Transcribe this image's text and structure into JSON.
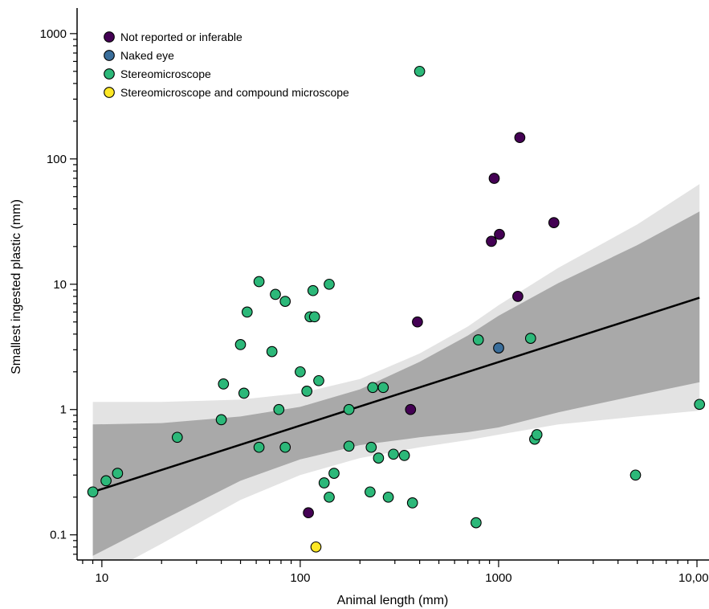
{
  "chart_data": {
    "type": "scatter",
    "xlabel": "Animal length (mm)",
    "ylabel": "Smallest ingested plastic (mm)",
    "x_scale": "log",
    "y_scale": "log",
    "xlim": [
      7.5,
      11500
    ],
    "ylim": [
      0.063,
      1600
    ],
    "x_ticks": [
      {
        "value": 10,
        "label": "10"
      },
      {
        "value": 100,
        "label": "100"
      },
      {
        "value": 1000,
        "label": "1000"
      },
      {
        "value": 10000,
        "label": "10,000"
      }
    ],
    "y_ticks": [
      {
        "value": 0.1,
        "label": "0.1"
      },
      {
        "value": 1,
        "label": "1"
      },
      {
        "value": 10,
        "label": "10"
      },
      {
        "value": 100,
        "label": "100"
      },
      {
        "value": 1000,
        "label": "1000"
      }
    ],
    "grid": false,
    "legend_position": "top-left",
    "series": [
      {
        "name": "Not reported or inferable",
        "color": "#440154",
        "points": [
          {
            "x": 110,
            "y": 0.15
          },
          {
            "x": 360,
            "y": 1
          },
          {
            "x": 390,
            "y": 5
          },
          {
            "x": 920,
            "y": 22
          },
          {
            "x": 950,
            "y": 70
          },
          {
            "x": 1010,
            "y": 25
          },
          {
            "x": 1250,
            "y": 8
          },
          {
            "x": 1280,
            "y": 148
          },
          {
            "x": 1900,
            "y": 31
          }
        ]
      },
      {
        "name": "Naked eye",
        "color": "#3a6e9b",
        "points": [
          {
            "x": 1000,
            "y": 3.1
          }
        ]
      },
      {
        "name": "Stereomicroscope",
        "color": "#2cb879",
        "points": [
          {
            "x": 9,
            "y": 0.22
          },
          {
            "x": 10.5,
            "y": 0.27
          },
          {
            "x": 12,
            "y": 0.31
          },
          {
            "x": 24,
            "y": 0.6
          },
          {
            "x": 40,
            "y": 0.83
          },
          {
            "x": 41,
            "y": 1.6
          },
          {
            "x": 50,
            "y": 3.3
          },
          {
            "x": 52,
            "y": 1.35
          },
          {
            "x": 54,
            "y": 6
          },
          {
            "x": 62,
            "y": 10.5
          },
          {
            "x": 62,
            "y": 0.5
          },
          {
            "x": 72,
            "y": 2.9
          },
          {
            "x": 75,
            "y": 8.3
          },
          {
            "x": 78,
            "y": 1
          },
          {
            "x": 84,
            "y": 7.3
          },
          {
            "x": 84,
            "y": 0.5
          },
          {
            "x": 100,
            "y": 2
          },
          {
            "x": 108,
            "y": 1.4
          },
          {
            "x": 112,
            "y": 5.5
          },
          {
            "x": 116,
            "y": 8.9
          },
          {
            "x": 118,
            "y": 5.5
          },
          {
            "x": 124,
            "y": 1.7
          },
          {
            "x": 132,
            "y": 0.26
          },
          {
            "x": 140,
            "y": 0.2
          },
          {
            "x": 140,
            "y": 10
          },
          {
            "x": 148,
            "y": 0.31
          },
          {
            "x": 176,
            "y": 1
          },
          {
            "x": 176,
            "y": 0.51
          },
          {
            "x": 225,
            "y": 0.22
          },
          {
            "x": 228,
            "y": 0.5
          },
          {
            "x": 232,
            "y": 1.5
          },
          {
            "x": 248,
            "y": 0.41
          },
          {
            "x": 262,
            "y": 1.5
          },
          {
            "x": 278,
            "y": 0.2
          },
          {
            "x": 295,
            "y": 0.44
          },
          {
            "x": 335,
            "y": 0.43
          },
          {
            "x": 368,
            "y": 0.18
          },
          {
            "x": 400,
            "y": 500
          },
          {
            "x": 770,
            "y": 0.125
          },
          {
            "x": 790,
            "y": 3.6
          },
          {
            "x": 1450,
            "y": 3.7
          },
          {
            "x": 1520,
            "y": 0.58
          },
          {
            "x": 1560,
            "y": 0.63
          },
          {
            "x": 4900,
            "y": 0.3
          },
          {
            "x": 10300,
            "y": 1.1
          }
        ]
      },
      {
        "name": "Stereomicroscope and compound microscope",
        "color": "#fde725",
        "points": [
          {
            "x": 120,
            "y": 0.08
          }
        ]
      }
    ],
    "fit_line": {
      "x": [
        9,
        10300
      ],
      "y": [
        0.22,
        7.8
      ]
    },
    "confidence_bands": {
      "x": [
        9,
        20,
        50,
        100,
        200,
        400,
        700,
        1000,
        2000,
        5000,
        10300
      ],
      "inner_upper": [
        0.76,
        0.78,
        0.88,
        1.05,
        1.45,
        2.4,
        3.9,
        5.6,
        10.2,
        20.5,
        38
      ],
      "inner_lower": [
        0.068,
        0.13,
        0.27,
        0.4,
        0.52,
        0.6,
        0.66,
        0.72,
        0.95,
        1.3,
        1.65
      ],
      "outer_upper": [
        1.15,
        1.15,
        1.2,
        1.35,
        1.75,
        2.8,
        4.6,
        6.8,
        13.5,
        30,
        63
      ],
      "outer_lower": [
        0.043,
        0.085,
        0.19,
        0.3,
        0.41,
        0.5,
        0.57,
        0.63,
        0.76,
        0.88,
        0.98
      ]
    }
  }
}
